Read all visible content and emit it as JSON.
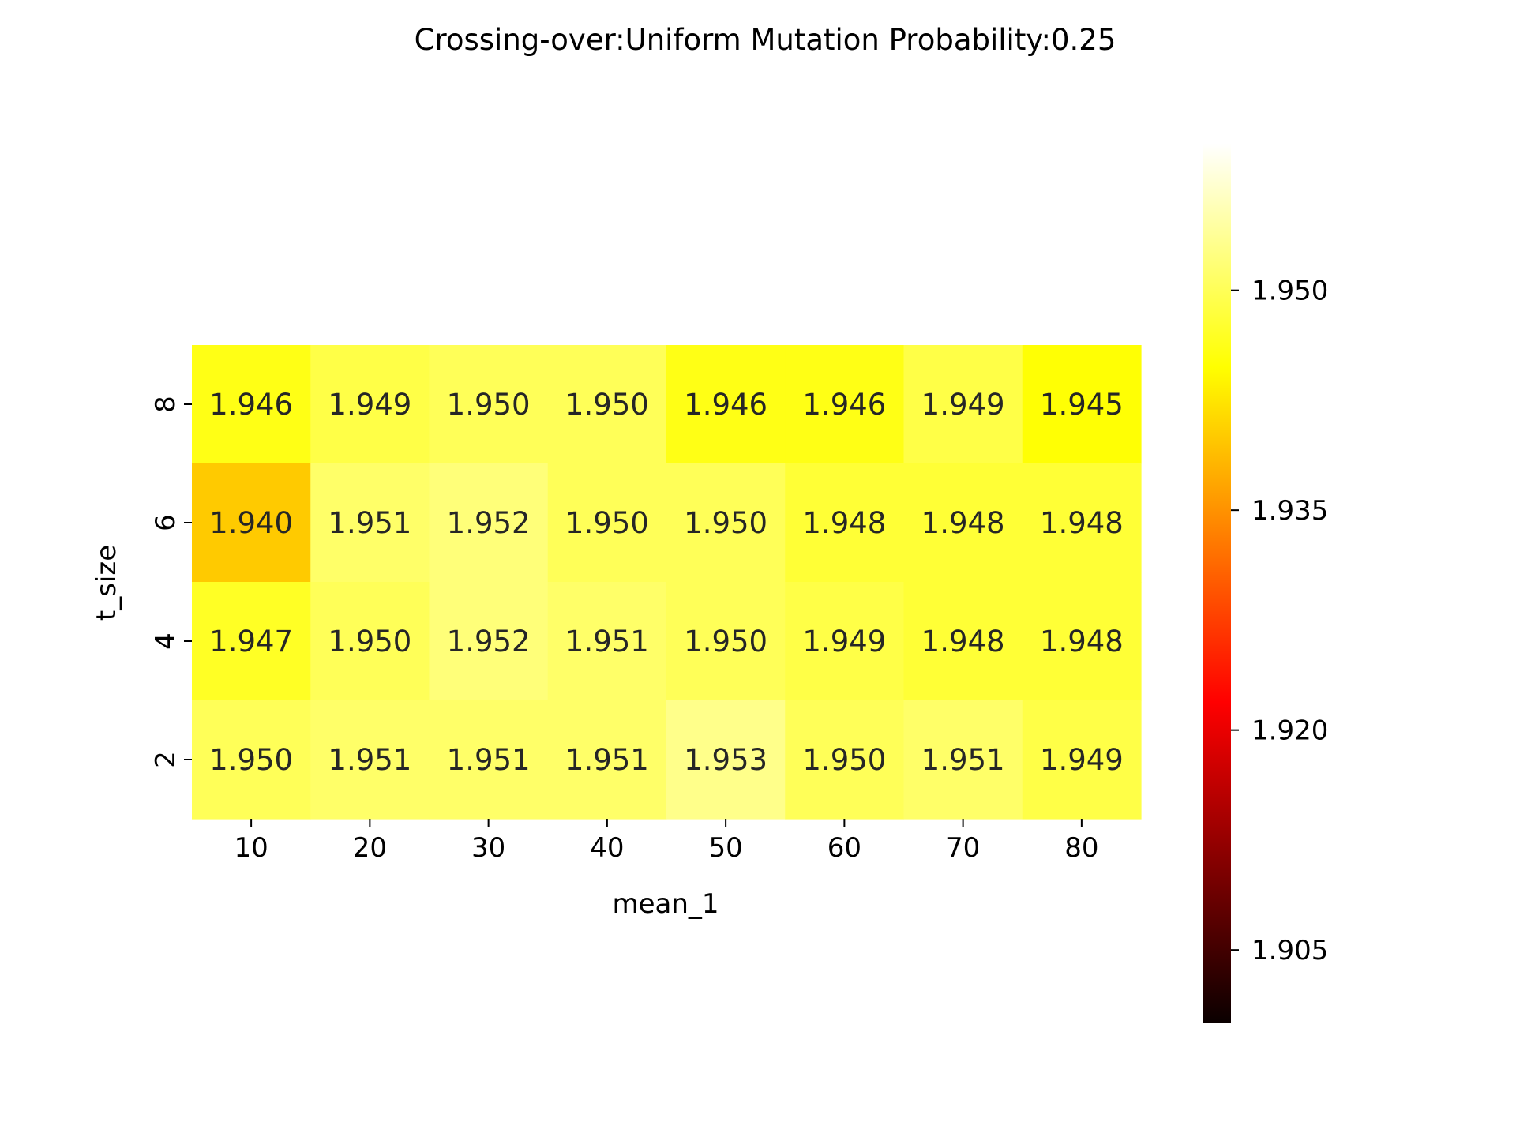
{
  "chart_data": {
    "type": "heatmap",
    "title": "Crossing-over:Uniform Mutation Probability:0.25",
    "xlabel": "mean_1",
    "ylabel": "t_size",
    "x_categories": [
      "10",
      "20",
      "30",
      "40",
      "50",
      "60",
      "70",
      "80"
    ],
    "y_categories": [
      "8",
      "6",
      "4",
      "2"
    ],
    "values": [
      [
        1.946,
        1.949,
        1.95,
        1.95,
        1.946,
        1.946,
        1.949,
        1.945
      ],
      [
        1.94,
        1.951,
        1.952,
        1.95,
        1.95,
        1.948,
        1.948,
        1.948
      ],
      [
        1.947,
        1.95,
        1.952,
        1.951,
        1.95,
        1.949,
        1.948,
        1.948
      ],
      [
        1.95,
        1.951,
        1.951,
        1.951,
        1.953,
        1.95,
        1.951,
        1.949
      ]
    ],
    "colormap": "hot",
    "colorbar": {
      "range": [
        1.9,
        1.96
      ],
      "ticks": [
        1.905,
        1.92,
        1.935,
        1.95
      ],
      "tick_labels": [
        "1.905",
        "1.920",
        "1.935",
        "1.950"
      ]
    },
    "grid": false,
    "legend": "colorbar-right"
  }
}
